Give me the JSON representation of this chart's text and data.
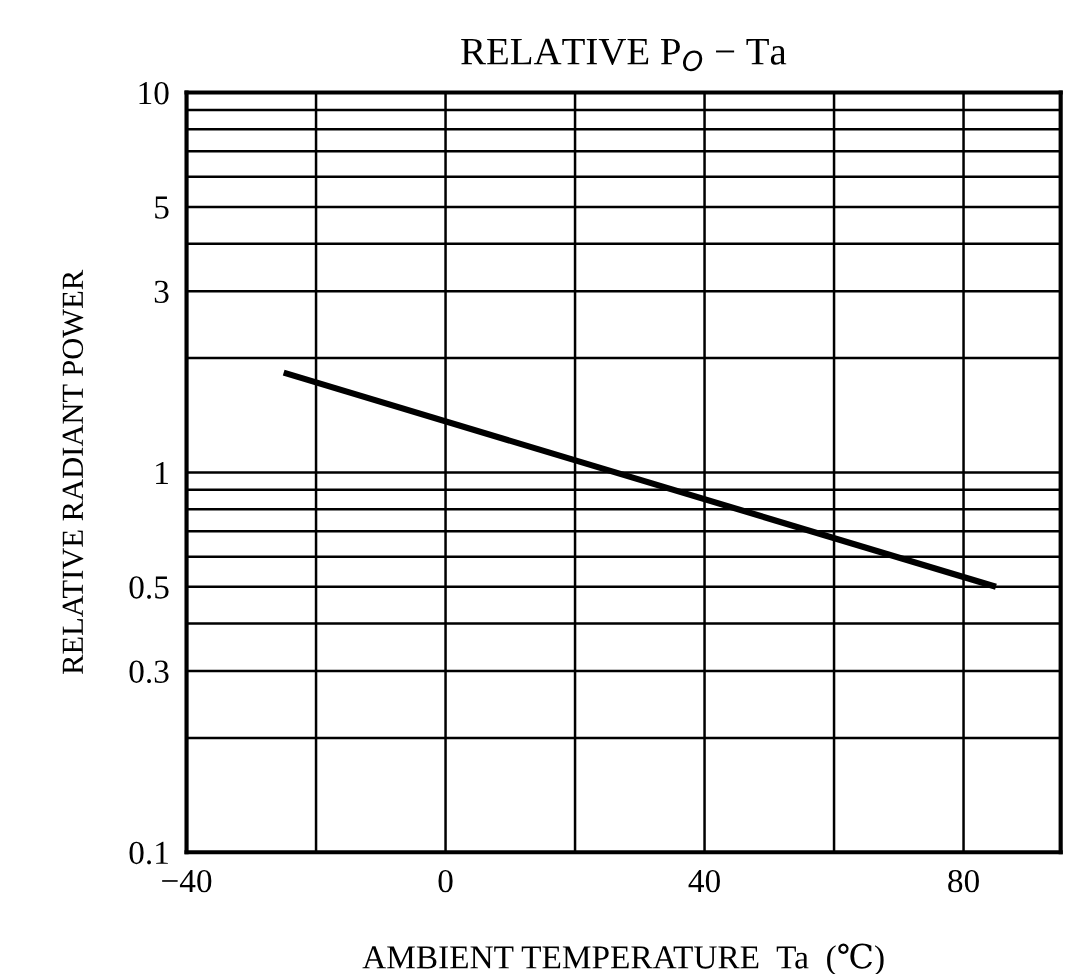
{
  "chart_data": {
    "type": "line",
    "title": "RELATIVE P$_{O}$ − Ta",
    "xlabel": "AMBIENT TEMPERATURE  Ta  (℃)",
    "ylabel": "RELATIVE RADIANT POWER",
    "series": [
      {
        "color": "#000000",
        "x": [
          -25,
          85
        ],
        "values": [
          1.83,
          0.5
        ]
      }
    ],
    "log": "y",
    "xlim": [
      -40,
      95
    ],
    "ylim": [
      0.1,
      10
    ],
    "xticks": [
      -40,
      {
        "value": -20,
        "label": null
      },
      0,
      {
        "value": 20,
        "label": null
      },
      40,
      {
        "value": 60,
        "label": null
      },
      80
    ],
    "yticks": [
      0.1,
      {
        "value": 0.2,
        "label": null
      },
      0.3,
      {
        "value": 0.4,
        "label": null
      },
      0.5,
      {
        "value": 0.6,
        "label": null
      },
      {
        "value": 0.7,
        "label": null
      },
      {
        "value": 0.8,
        "label": null
      },
      {
        "value": 0.9,
        "label": null
      },
      1,
      {
        "value": 2,
        "label": null
      },
      3,
      {
        "value": 4,
        "label": null
      },
      5,
      {
        "value": 6,
        "label": null
      },
      {
        "value": 7,
        "label": null
      },
      {
        "value": 8,
        "label": null
      },
      {
        "value": 9,
        "label": null
      },
      10
    ],
    "grid": true,
    "marker": "none",
    "line_style": "solid"
  }
}
